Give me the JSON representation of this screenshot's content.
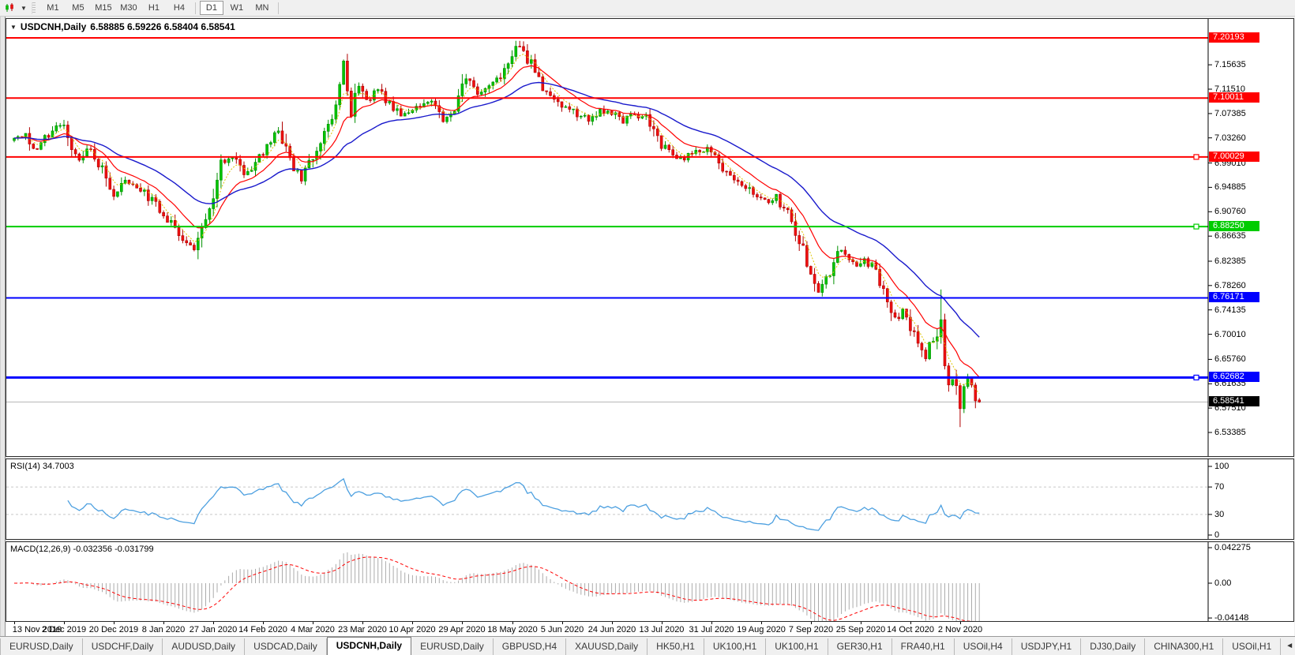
{
  "toolbar": {
    "timeframes": [
      "M1",
      "M5",
      "M15",
      "M30",
      "H1",
      "H4",
      "D1",
      "W1",
      "MN"
    ],
    "active": "D1"
  },
  "chart": {
    "collapse_glyph": "▼",
    "title_symbol": "USDCNH,Daily",
    "title_ohlc": "6.58885 6.59226 6.58404 6.58541",
    "axis_ticks": [
      "7.15635",
      "7.11510",
      "7.07385",
      "7.03260",
      "6.99010",
      "6.94885",
      "6.90760",
      "6.86635",
      "6.82385",
      "6.78260",
      "6.74135",
      "6.70010",
      "6.65760",
      "6.61635",
      "6.57510",
      "6.53385"
    ],
    "levels": [
      {
        "price": 7.20193,
        "label": "7.20193",
        "color": "#ff0000",
        "thickness": 2,
        "handle": false
      },
      {
        "price": 7.10011,
        "label": "7.10011",
        "color": "#ff0000",
        "thickness": 2,
        "handle": false
      },
      {
        "price": 7.00029,
        "label": "7.00029",
        "color": "#ff0000",
        "thickness": 2,
        "handle": true
      },
      {
        "price": 6.8825,
        "label": "6.88250",
        "color": "#00cc00",
        "thickness": 2,
        "handle": true
      },
      {
        "price": 6.76171,
        "label": "6.76171",
        "color": "#0000ff",
        "thickness": 2,
        "handle": false
      },
      {
        "price": 6.62682,
        "label": "6.62682",
        "color": "#0000ff",
        "thickness": 3,
        "handle": true
      }
    ],
    "current_price": {
      "value": 6.58541,
      "label": "6.58541",
      "line_color": "#b4b4b4",
      "badge_bg": "#000000"
    }
  },
  "chart_data": {
    "type": "candlestick",
    "symbol": "USDCNH",
    "timeframe": "Daily",
    "title": "USDCNH,Daily",
    "bar_count": 253,
    "seed": 20201113,
    "scale": {
      "price_top": 7.20193,
      "price_bottom": 6.53385
    },
    "up_color": "#00c400",
    "up_edge": "#009100",
    "down_color": "#f01010",
    "down_edge": "#b00000",
    "anchors": [
      [
        0,
        7.028
      ],
      [
        3,
        7.038
      ],
      [
        6,
        7.012
      ],
      [
        9,
        7.04
      ],
      [
        12,
        7.058
      ],
      [
        14,
        7.032
      ],
      [
        17,
        6.992
      ],
      [
        20,
        7.016
      ],
      [
        23,
        6.978
      ],
      [
        26,
        6.938
      ],
      [
        29,
        6.962
      ],
      [
        33,
        6.945
      ],
      [
        37,
        6.92
      ],
      [
        40,
        6.895
      ],
      [
        44,
        6.862
      ],
      [
        47,
        6.843
      ],
      [
        49,
        6.878
      ],
      [
        52,
        6.932
      ],
      [
        54,
        6.99
      ],
      [
        57,
        7.002
      ],
      [
        60,
        6.972
      ],
      [
        63,
        6.99
      ],
      [
        66,
        7.022
      ],
      [
        69,
        7.042
      ],
      [
        72,
        6.992
      ],
      [
        75,
        6.962
      ],
      [
        78,
        6.998
      ],
      [
        81,
        7.038
      ],
      [
        83,
        7.058
      ],
      [
        85,
        7.12
      ],
      [
        86,
        7.16
      ],
      [
        88,
        7.078
      ],
      [
        90,
        7.118
      ],
      [
        92,
        7.095
      ],
      [
        95,
        7.112
      ],
      [
        98,
        7.088
      ],
      [
        101,
        7.072
      ],
      [
        105,
        7.082
      ],
      [
        109,
        7.098
      ],
      [
        112,
        7.062
      ],
      [
        115,
        7.078
      ],
      [
        118,
        7.132
      ],
      [
        121,
        7.108
      ],
      [
        124,
        7.122
      ],
      [
        127,
        7.135
      ],
      [
        129,
        7.152
      ],
      [
        131,
        7.178
      ],
      [
        132,
        7.19
      ],
      [
        134,
        7.168
      ],
      [
        136,
        7.142
      ],
      [
        138,
        7.12
      ],
      [
        141,
        7.098
      ],
      [
        144,
        7.085
      ],
      [
        147,
        7.072
      ],
      [
        150,
        7.062
      ],
      [
        153,
        7.08
      ],
      [
        156,
        7.076
      ],
      [
        159,
        7.06
      ],
      [
        162,
        7.072
      ],
      [
        165,
        7.066
      ],
      [
        166,
        7.058
      ],
      [
        169,
        7.022
      ],
      [
        172,
        7.002
      ],
      [
        175,
        6.998
      ],
      [
        178,
        7.008
      ],
      [
        181,
        7.015
      ],
      [
        184,
        6.988
      ],
      [
        187,
        6.968
      ],
      [
        190,
        6.955
      ],
      [
        193,
        6.938
      ],
      [
        196,
        6.925
      ],
      [
        199,
        6.932
      ],
      [
        202,
        6.905
      ],
      [
        204,
        6.868
      ],
      [
        206,
        6.845
      ],
      [
        208,
        6.8
      ],
      [
        210,
        6.772
      ],
      [
        212,
        6.79
      ],
      [
        214,
        6.828
      ],
      [
        216,
        6.845
      ],
      [
        218,
        6.832
      ],
      [
        220,
        6.812
      ],
      [
        222,
        6.828
      ],
      [
        224,
        6.815
      ],
      [
        226,
        6.782
      ],
      [
        228,
        6.752
      ],
      [
        230,
        6.725
      ],
      [
        232,
        6.742
      ],
      [
        234,
        6.708
      ],
      [
        236,
        6.688
      ],
      [
        238,
        6.662
      ],
      [
        240,
        6.692
      ],
      [
        242,
        6.718
      ],
      [
        243,
        6.648
      ],
      [
        244,
        6.608
      ],
      [
        245,
        6.628
      ],
      [
        246,
        6.602
      ],
      [
        247,
        6.572
      ],
      [
        248,
        6.608
      ],
      [
        249,
        6.622
      ],
      [
        250,
        6.612
      ],
      [
        251,
        6.596
      ],
      [
        252,
        6.58541
      ]
    ],
    "wick_overrides": {
      "47": {
        "low": 6.8405
      },
      "132": {
        "high": 7.1969
      },
      "242": {
        "high": 6.776
      },
      "247": {
        "low": 6.543
      }
    },
    "last_bar": {
      "open": 6.58885,
      "high": 6.59226,
      "low": 6.58404,
      "close": 6.58541
    },
    "moving_averages": [
      {
        "name": "ma-short",
        "period": 5,
        "color": "#dfc400",
        "width": 1,
        "dash": "2,2"
      },
      {
        "name": "ma-fast",
        "period": 13,
        "color": "#ff0000",
        "width": 1.2,
        "dash": ""
      },
      {
        "name": "ma-slow",
        "period": 34,
        "color": "#1a1acc",
        "width": 1.4,
        "dash": ""
      }
    ],
    "dates": [
      "13 Nov 2019",
      "2 Dec 2019",
      "20 Dec 2019",
      "8 Jan 2020",
      "27 Jan 2020",
      "14 Feb 2020",
      "4 Mar 2020",
      "23 Mar 2020",
      "10 Apr 2020",
      "29 Apr 2020",
      "18 May 2020",
      "5 Jun 2020",
      "24 Jun 2020",
      "13 Jul 2020",
      "31 Jul 2020",
      "19 Aug 2020",
      "7 Sep 2020",
      "25 Sep 2020",
      "14 Oct 2020",
      "2 Nov 2020"
    ],
    "date_step_bars": 13
  },
  "indicators": {
    "rsi": {
      "label": "RSI(14) 34.7003",
      "period": 14,
      "last_value": 34.7003,
      "color": "#4da0e0",
      "grid_levels": [
        70,
        30
      ],
      "axis_labels": [
        "100",
        "70",
        "30",
        "0"
      ]
    },
    "macd": {
      "label": "MACD(12,26,9) -0.032356 -0.031799",
      "fast": 12,
      "slow": 26,
      "signal": 9,
      "last_main": -0.032356,
      "last_signal": -0.031799,
      "hist_color": "#ababab",
      "signal_color": "#ff0000",
      "axis_labels": [
        "0.042275",
        "0.00",
        "-0.04148"
      ]
    }
  },
  "tabs": {
    "items": [
      "EURUSD,Daily",
      "USDCHF,Daily",
      "AUDUSD,Daily",
      "USDCAD,Daily",
      "USDCNH,Daily",
      "EURUSD,Daily",
      "GBPUSD,H4",
      "XAUUSD,Daily",
      "HK50,H1",
      "UK100,H1",
      "UK100,H1",
      "GER30,H1",
      "FRA40,H1",
      "USOil,H4",
      "USDJPY,H1",
      "DJ30,Daily",
      "CHINA300,H1",
      "USOil,H1"
    ],
    "active_index": 4,
    "scroll_left_glyph": "◄"
  }
}
